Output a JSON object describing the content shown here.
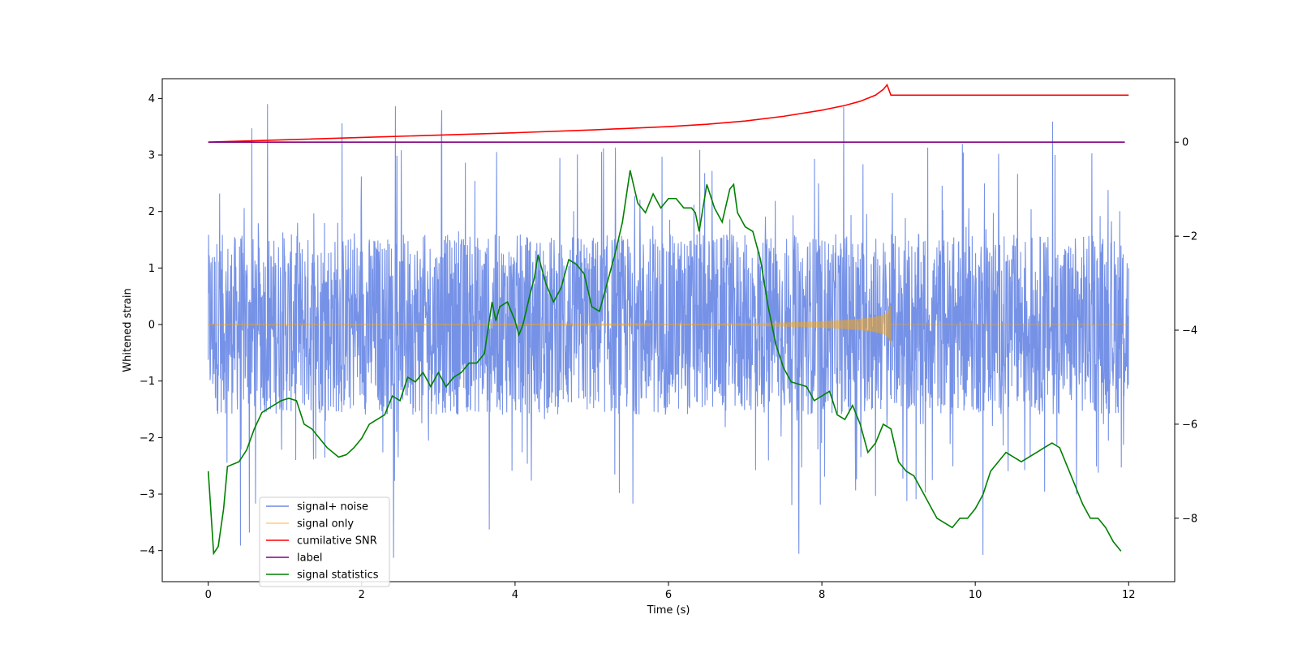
{
  "chart_data": {
    "type": "line",
    "title": "",
    "xlabel": "Time (s)",
    "ylabel": "Whitened strain",
    "y2label": "",
    "xlim": [
      -0.6,
      12.6
    ],
    "ylim": [
      -4.55,
      4.35
    ],
    "y2lim": [
      -9.35,
      1.35
    ],
    "x_ticks": [
      0,
      2,
      4,
      6,
      8,
      10,
      12
    ],
    "x_tick_labels": [
      "0",
      "2",
      "4",
      "6",
      "8",
      "10",
      "12"
    ],
    "y_ticks": [
      4,
      3,
      2,
      1,
      0,
      -1,
      -2,
      -3,
      -4
    ],
    "y_tick_labels": [
      "4",
      "3",
      "2",
      "1",
      "0",
      "−1",
      "−2",
      "−3",
      "−4"
    ],
    "y2_ticks": [
      0,
      -2,
      -4,
      -6,
      -8
    ],
    "y2_tick_labels": [
      "0",
      "−2",
      "−4",
      "−6",
      "−8"
    ],
    "legend_position": "lower-left",
    "series": [
      {
        "name": "signal+ noise",
        "color": "#6f8ce6",
        "axis": "left",
        "kind": "noise",
        "x_range": [
          0,
          12
        ],
        "typical_range": [
          -1.6,
          1.6
        ],
        "extremes_range": [
          -4.15,
          3.95
        ]
      },
      {
        "name": "signal only",
        "color": "#ffa500",
        "axis": "left",
        "kind": "chirp",
        "x_range": [
          0,
          12
        ],
        "merger_time": 8.9,
        "peak_amplitude": 0.45
      },
      {
        "name": "cumilative SNR",
        "color": "#ff0000",
        "axis": "right",
        "x": [
          0,
          1,
          2,
          3,
          4,
          5,
          6,
          6.5,
          7,
          7.5,
          8,
          8.3,
          8.5,
          8.7,
          8.8,
          8.85,
          8.9,
          12
        ],
        "y": [
          0.0,
          0.05,
          0.1,
          0.15,
          0.2,
          0.26,
          0.33,
          0.38,
          0.45,
          0.55,
          0.68,
          0.78,
          0.87,
          1.0,
          1.12,
          1.22,
          1.0,
          1.0
        ]
      },
      {
        "name": "label",
        "color": "#800080",
        "axis": "right",
        "x": [
          0,
          11.95
        ],
        "y": [
          0,
          0
        ]
      },
      {
        "name": "signal statistics",
        "color": "#008000",
        "axis": "right",
        "x": [
          0,
          0.07,
          0.13,
          0.2,
          0.25,
          0.4,
          0.5,
          0.6,
          0.7,
          0.85,
          0.95,
          1.05,
          1.15,
          1.25,
          1.35,
          1.45,
          1.55,
          1.7,
          1.8,
          1.9,
          2.0,
          2.1,
          2.2,
          2.3,
          2.4,
          2.5,
          2.6,
          2.7,
          2.8,
          2.9,
          3.0,
          3.1,
          3.2,
          3.3,
          3.4,
          3.5,
          3.6,
          3.7,
          3.75,
          3.8,
          3.9,
          4.0,
          4.05,
          4.1,
          4.2,
          4.25,
          4.3,
          4.4,
          4.5,
          4.6,
          4.7,
          4.8,
          4.9,
          5.0,
          5.1,
          5.2,
          5.3,
          5.4,
          5.5,
          5.6,
          5.7,
          5.8,
          5.9,
          6.0,
          6.1,
          6.2,
          6.3,
          6.35,
          6.4,
          6.5,
          6.6,
          6.7,
          6.8,
          6.85,
          6.9,
          7.0,
          7.1,
          7.2,
          7.3,
          7.4,
          7.5,
          7.6,
          7.7,
          7.8,
          7.9,
          8.0,
          8.1,
          8.2,
          8.3,
          8.4,
          8.5,
          8.6,
          8.7,
          8.8,
          8.9,
          9.0,
          9.1,
          9.2,
          9.3,
          9.4,
          9.5,
          9.6,
          9.7,
          9.8,
          9.9,
          10.0,
          10.1,
          10.2,
          10.3,
          10.4,
          10.5,
          10.6,
          10.7,
          10.8,
          10.9,
          11.0,
          11.1,
          11.2,
          11.3,
          11.4,
          11.5,
          11.6,
          11.7,
          11.8,
          11.9
        ],
        "y": [
          -7.0,
          -8.75,
          -8.6,
          -7.8,
          -6.9,
          -6.8,
          -6.55,
          -6.1,
          -5.75,
          -5.6,
          -5.5,
          -5.45,
          -5.5,
          -6.0,
          -6.1,
          -6.3,
          -6.5,
          -6.7,
          -6.65,
          -6.5,
          -6.3,
          -6.0,
          -5.9,
          -5.8,
          -5.4,
          -5.5,
          -5.0,
          -5.1,
          -4.9,
          -5.2,
          -4.9,
          -5.2,
          -5.0,
          -4.9,
          -4.7,
          -4.7,
          -4.5,
          -3.4,
          -3.8,
          -3.5,
          -3.4,
          -3.8,
          -4.1,
          -3.9,
          -3.2,
          -2.9,
          -2.4,
          -3.0,
          -3.4,
          -3.1,
          -2.5,
          -2.6,
          -2.8,
          -3.5,
          -3.6,
          -3.0,
          -2.4,
          -1.7,
          -0.6,
          -1.3,
          -1.5,
          -1.1,
          -1.4,
          -1.2,
          -1.2,
          -1.4,
          -1.4,
          -1.5,
          -1.9,
          -0.9,
          -1.4,
          -1.7,
          -1.0,
          -0.9,
          -1.5,
          -1.8,
          -1.9,
          -2.5,
          -3.5,
          -4.3,
          -4.8,
          -5.1,
          -5.15,
          -5.2,
          -5.5,
          -5.4,
          -5.3,
          -5.8,
          -5.9,
          -5.6,
          -6.0,
          -6.6,
          -6.4,
          -6.0,
          -6.1,
          -6.8,
          -7.0,
          -7.1,
          -7.4,
          -7.7,
          -8.0,
          -8.1,
          -8.2,
          -8.0,
          -8.0,
          -7.8,
          -7.5,
          -7.0,
          -6.8,
          -6.6,
          -6.7,
          -6.8,
          -6.7,
          -6.6,
          -6.5,
          -6.4,
          -6.5,
          -6.9,
          -7.3,
          -7.7,
          -8.0,
          -8.0,
          -8.2,
          -8.5,
          -8.7
        ]
      }
    ]
  }
}
